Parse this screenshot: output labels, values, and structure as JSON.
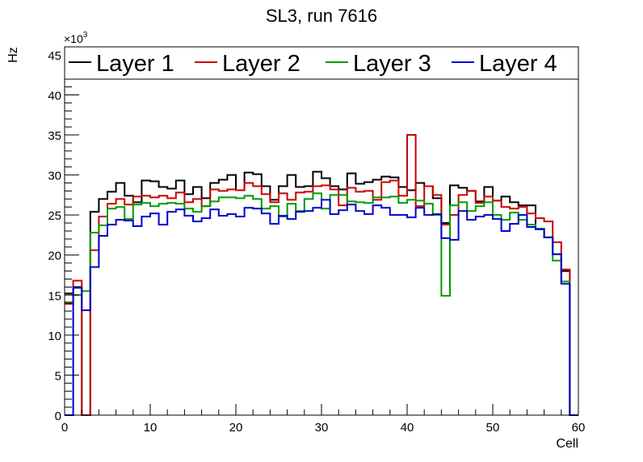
{
  "chart_data": {
    "type": "line",
    "style": "step-histogram",
    "title": "SL3, run 7616",
    "xlabel": "Cell",
    "ylabel": "Hz",
    "y_multiplier": "×10",
    "y_multiplier_exp": "3",
    "xlim": [
      0,
      60
    ],
    "ylim": [
      0,
      46
    ],
    "xticks": [
      "0",
      "10",
      "20",
      "30",
      "40",
      "50",
      "60"
    ],
    "yticks": [
      "0",
      "5",
      "10",
      "15",
      "20",
      "25",
      "30",
      "35",
      "40",
      "45"
    ],
    "grid": false,
    "legend_position": "top",
    "bin_edges_start": 0,
    "bin_width": 1,
    "series": [
      {
        "name": "Layer 1",
        "color": "#000000",
        "values": [
          15.2,
          16.0,
          0,
          25.4,
          27.0,
          27.9,
          29.0,
          27.4,
          26.6,
          29.3,
          29.2,
          28.5,
          28.3,
          29.3,
          27.6,
          28.5,
          27.1,
          29.0,
          29.4,
          30.0,
          28.1,
          30.3,
          30.1,
          28.6,
          26.9,
          28.6,
          30.0,
          28.5,
          28.6,
          30.4,
          29.6,
          28.6,
          28.2,
          30.2,
          28.9,
          29.1,
          29.4,
          29.8,
          29.7,
          28.5,
          28.1,
          29.0,
          28.6,
          27.1,
          24.0,
          28.7,
          28.4,
          28.0,
          26.7,
          28.5,
          26.8,
          27.3,
          26.6,
          26.2,
          26.2,
          23.2,
          22.2,
          20.1,
          18.0,
          0
        ]
      },
      {
        "name": "Layer 2",
        "color": "#cc0000",
        "values": [
          13.9,
          16.8,
          0,
          20.6,
          24.8,
          26.4,
          27.0,
          26.3,
          27.3,
          27.4,
          27.2,
          27.4,
          27.1,
          27.8,
          26.6,
          27.0,
          26.1,
          28.2,
          28.0,
          28.2,
          28.1,
          29.0,
          28.6,
          27.6,
          26.6,
          27.7,
          26.9,
          27.8,
          27.9,
          28.6,
          28.7,
          28.2,
          26.2,
          28.4,
          27.9,
          28.0,
          26.9,
          29.1,
          29.3,
          27.4,
          35.0,
          26.1,
          28.6,
          27.5,
          23.8,
          25.0,
          27.5,
          28.0,
          26.5,
          27.3,
          26.8,
          26.0,
          25.8,
          26.0,
          25.2,
          24.6,
          24.2,
          21.6,
          18.2,
          0
        ]
      },
      {
        "name": "Layer 3",
        "color": "#009900",
        "values": [
          14.1,
          15.0,
          15.5,
          22.8,
          23.7,
          25.8,
          26.0,
          24.5,
          26.3,
          26.5,
          26.1,
          26.4,
          26.5,
          26.4,
          25.8,
          25.4,
          26.1,
          26.7,
          27.2,
          27.2,
          27.1,
          27.4,
          27.0,
          25.8,
          26.1,
          24.8,
          26.4,
          25.5,
          27.0,
          27.7,
          25.8,
          27.5,
          27.5,
          26.7,
          26.6,
          26.5,
          27.2,
          27.2,
          27.3,
          26.5,
          26.9,
          26.8,
          26.4,
          25.0,
          14.9,
          26.2,
          26.6,
          25.5,
          26.1,
          26.6,
          25.0,
          24.4,
          25.3,
          24.4,
          23.8,
          23.3,
          22.2,
          19.3,
          16.7,
          0
        ]
      },
      {
        "name": "Layer 4",
        "color": "#0000cc",
        "values": [
          0,
          15.9,
          13.1,
          18.5,
          22.4,
          23.8,
          24.4,
          24.3,
          23.6,
          24.8,
          25.2,
          23.8,
          25.4,
          25.7,
          24.9,
          24.2,
          24.6,
          25.7,
          24.9,
          25.1,
          24.8,
          25.9,
          25.8,
          25.2,
          23.9,
          24.9,
          24.5,
          25.4,
          25.5,
          25.9,
          26.9,
          25.1,
          25.6,
          26.3,
          25.5,
          25.1,
          26.2,
          25.9,
          25.0,
          25.0,
          24.7,
          25.9,
          25.0,
          25.1,
          22.1,
          21.9,
          25.5,
          24.4,
          24.8,
          25.0,
          24.5,
          23.0,
          23.9,
          25.0,
          23.5,
          23.2,
          22.2,
          20.1,
          16.4,
          0
        ]
      }
    ]
  }
}
